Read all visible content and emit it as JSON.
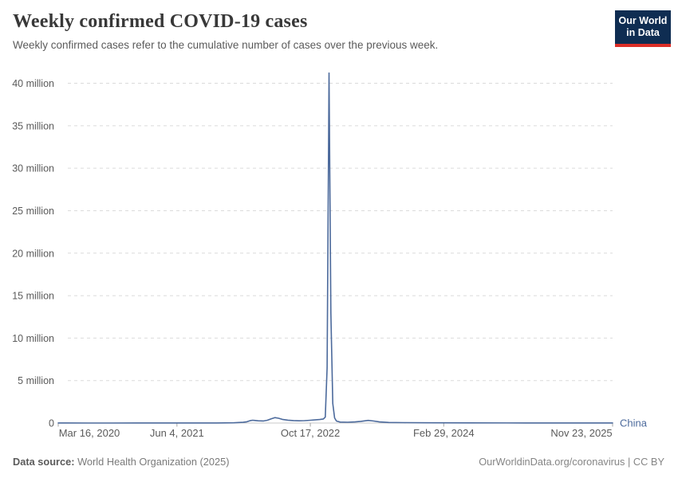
{
  "header": {
    "title": "Weekly confirmed COVID-19 cases",
    "subtitle": "Weekly confirmed cases refer to the cumulative number of cases over the previous week.",
    "logo": {
      "line1": "Our World",
      "line2": "in Data",
      "bg_color": "#0f2d52",
      "accent_color": "#dc2e27"
    }
  },
  "footer": {
    "datasource_label": "Data source:",
    "datasource_value": " World Health Organization (2025)",
    "rights": "OurWorldinData.org/coronavirus | CC BY"
  },
  "chart_data": {
    "type": "line",
    "title": "Weekly confirmed COVID-19 cases",
    "subtitle": "Weekly confirmed cases refer to the cumulative number of cases over the previous week.",
    "xlabel": "",
    "ylabel": "",
    "grid": true,
    "legend_position": "entity-label-right-of-line",
    "ylim": [
      0,
      40000000
    ],
    "x_range": [
      "2020-03-16",
      "2025-11-23"
    ],
    "y_ticks": [
      {
        "value": 0,
        "label": "0"
      },
      {
        "value": 5000000,
        "label": "5 million"
      },
      {
        "value": 10000000,
        "label": "10 million"
      },
      {
        "value": 15000000,
        "label": "15 million"
      },
      {
        "value": 20000000,
        "label": "20 million"
      },
      {
        "value": 25000000,
        "label": "25 million"
      },
      {
        "value": 30000000,
        "label": "30 million"
      },
      {
        "value": 35000000,
        "label": "35 million"
      },
      {
        "value": 40000000,
        "label": "40 million"
      }
    ],
    "x_ticks": [
      {
        "date": "2020-03-16",
        "label": "Mar 16, 2020"
      },
      {
        "date": "2021-06-04",
        "label": "Jun 4, 2021"
      },
      {
        "date": "2022-10-17",
        "label": "Oct 17, 2022"
      },
      {
        "date": "2024-02-29",
        "label": "Feb 29, 2024"
      },
      {
        "date": "2025-11-23",
        "label": "Nov 23, 2025"
      }
    ],
    "series": [
      {
        "name": "China",
        "color": "#4c6a9c",
        "peak": {
          "date": "2022-12-26",
          "value": 41200000
        },
        "points": [
          [
            "2020-03-16",
            12000
          ],
          [
            "2020-04-13",
            6000
          ],
          [
            "2020-07-06",
            3000
          ],
          [
            "2020-10-05",
            4000
          ],
          [
            "2021-01-04",
            9000
          ],
          [
            "2021-04-05",
            6000
          ],
          [
            "2021-08-02",
            9000
          ],
          [
            "2021-11-01",
            7000
          ],
          [
            "2022-01-03",
            25000
          ],
          [
            "2022-02-07",
            80000
          ],
          [
            "2022-02-21",
            150000
          ],
          [
            "2022-03-07",
            290000
          ],
          [
            "2022-03-14",
            330000
          ],
          [
            "2022-03-21",
            310000
          ],
          [
            "2022-04-04",
            260000
          ],
          [
            "2022-04-25",
            240000
          ],
          [
            "2022-05-09",
            330000
          ],
          [
            "2022-05-23",
            500000
          ],
          [
            "2022-06-06",
            640000
          ],
          [
            "2022-06-20",
            560000
          ],
          [
            "2022-07-04",
            430000
          ],
          [
            "2022-07-25",
            340000
          ],
          [
            "2022-08-15",
            290000
          ],
          [
            "2022-09-05",
            260000
          ],
          [
            "2022-09-26",
            280000
          ],
          [
            "2022-10-17",
            330000
          ],
          [
            "2022-11-07",
            380000
          ],
          [
            "2022-11-21",
            410000
          ],
          [
            "2022-12-05",
            480000
          ],
          [
            "2022-12-12",
            700000
          ],
          [
            "2022-12-19",
            6500000
          ],
          [
            "2022-12-26",
            41200000
          ],
          [
            "2023-01-02",
            13000000
          ],
          [
            "2023-01-09",
            2300000
          ],
          [
            "2023-01-16",
            600000
          ],
          [
            "2023-01-23",
            230000
          ],
          [
            "2023-02-06",
            110000
          ],
          [
            "2023-03-06",
            90000
          ],
          [
            "2023-04-03",
            130000
          ],
          [
            "2023-04-24",
            200000
          ],
          [
            "2023-05-22",
            310000
          ],
          [
            "2023-06-12",
            230000
          ],
          [
            "2023-07-03",
            130000
          ],
          [
            "2023-08-07",
            70000
          ],
          [
            "2023-10-02",
            45000
          ],
          [
            "2024-01-01",
            30000
          ],
          [
            "2024-06-03",
            18000
          ],
          [
            "2024-12-30",
            12000
          ],
          [
            "2025-06-02",
            8000
          ],
          [
            "2025-11-23",
            5000
          ]
        ]
      }
    ],
    "colors": {
      "gridline": "#dbdbdb",
      "zero_axis": "#c8c8c8",
      "tick": "#a5a5a5",
      "axis_text": "#5b5b5b"
    }
  }
}
